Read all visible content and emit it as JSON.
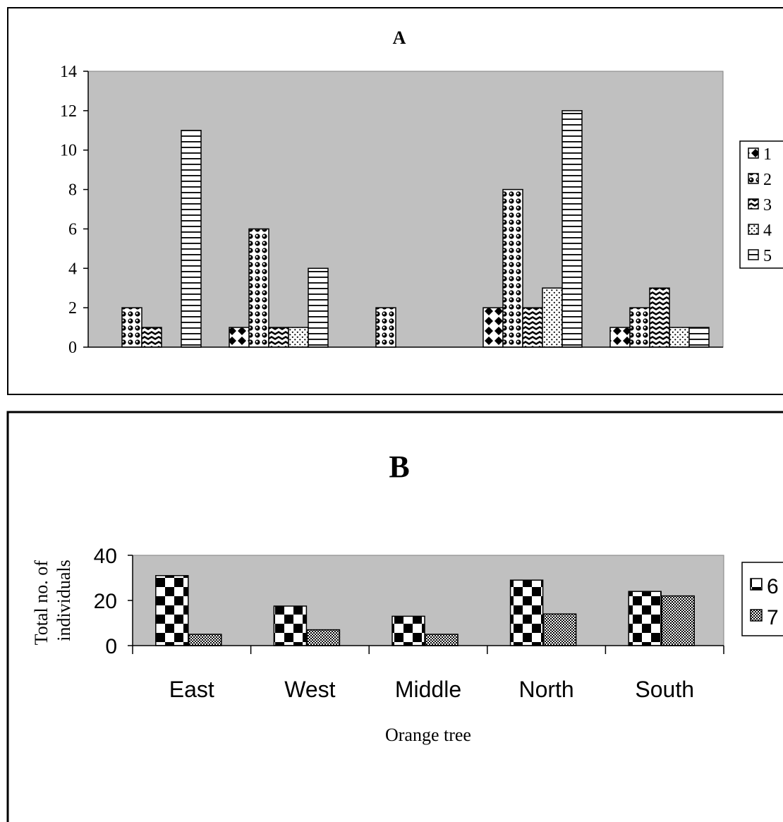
{
  "chart_data": [
    {
      "type": "bar",
      "title": "A",
      "xlabel": "",
      "ylabel": "",
      "categories": [
        "East",
        "West",
        "Middle",
        "North",
        "South"
      ],
      "show_category_labels": false,
      "ylim": [
        0,
        14
      ],
      "yticks": [
        0,
        2,
        4,
        6,
        8,
        10,
        12,
        14
      ],
      "grid": false,
      "legend_position": "right",
      "series": [
        {
          "name": "1",
          "pattern": "diamond",
          "values": [
            0,
            1,
            0,
            2,
            1
          ]
        },
        {
          "name": "2",
          "pattern": "circles",
          "values": [
            2,
            6,
            2,
            8,
            2
          ]
        },
        {
          "name": "3",
          "pattern": "wave",
          "values": [
            1,
            1,
            0,
            2,
            3
          ]
        },
        {
          "name": "4",
          "pattern": "dots",
          "values": [
            0,
            1,
            0,
            3,
            1
          ]
        },
        {
          "name": "5",
          "pattern": "hlines",
          "values": [
            11,
            4,
            0,
            12,
            1
          ]
        }
      ]
    },
    {
      "type": "bar",
      "title": "B",
      "xlabel": "Orange tree",
      "ylabel": "Total no. of individuals",
      "categories": [
        "East",
        "West",
        "Middle",
        "North",
        "South"
      ],
      "show_category_labels": true,
      "ylim": [
        0,
        40
      ],
      "yticks": [
        0,
        20,
        40
      ],
      "grid": false,
      "legend_position": "right",
      "series": [
        {
          "name": "6",
          "pattern": "checker",
          "values": [
            31,
            17.5,
            13,
            29,
            24
          ]
        },
        {
          "name": "7",
          "pattern": "finecheck",
          "values": [
            5,
            7,
            5,
            14,
            22
          ]
        }
      ]
    }
  ],
  "colors": {
    "plot_area": "#c0c0c0",
    "bar_fill": "#ffffff",
    "pattern_ink": "#000000",
    "frame": "#000000"
  }
}
